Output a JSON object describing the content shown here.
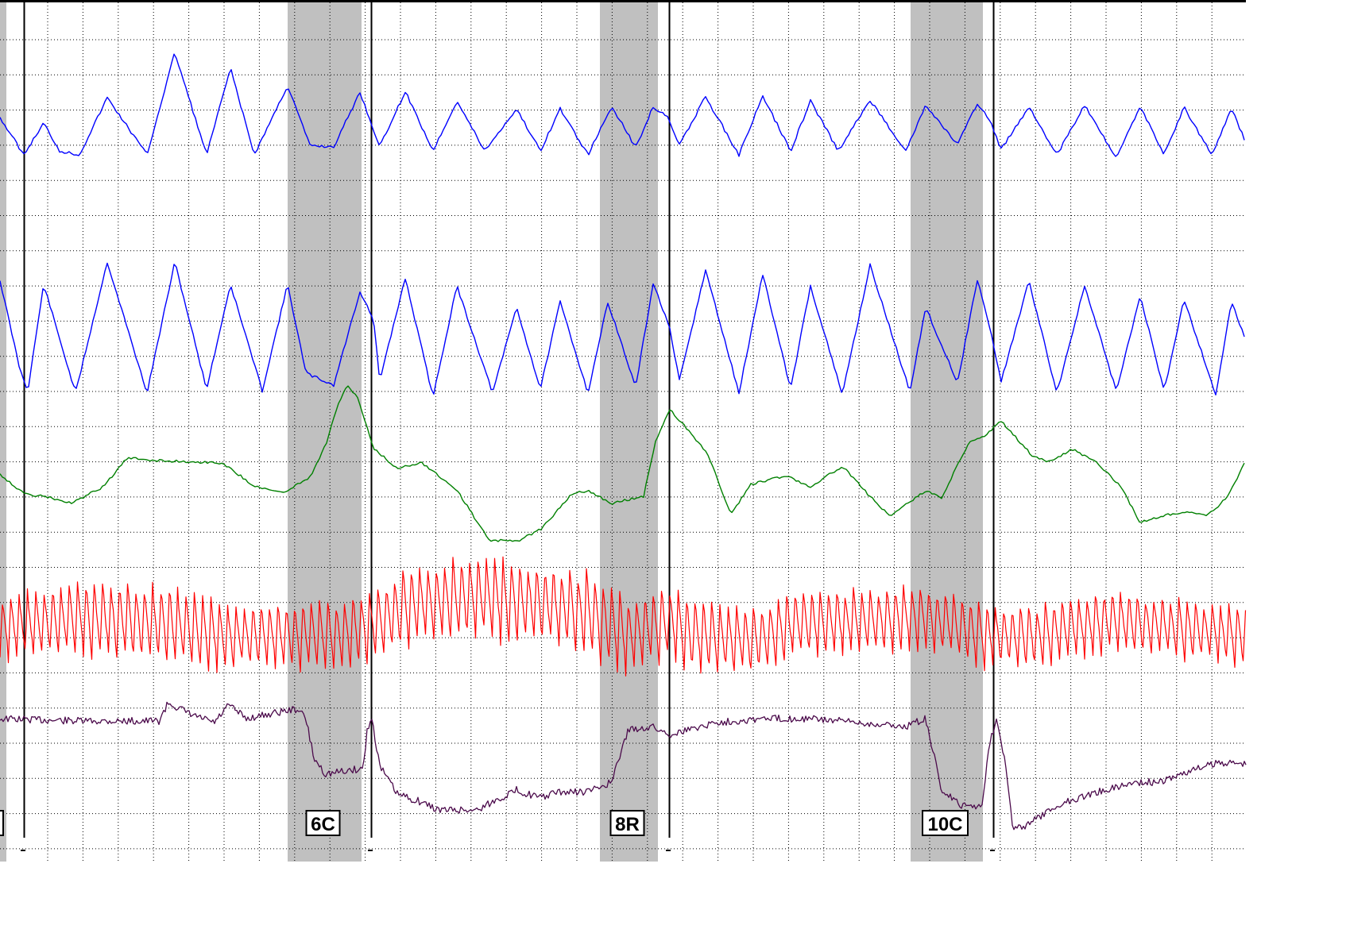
{
  "chart_data": {
    "type": "line",
    "title": "",
    "xlabel": "",
    "ylabel": "",
    "grid": true,
    "xlim": [
      0,
      1568
    ],
    "colors": {
      "background": "#ffffff",
      "grid": "#000000",
      "shading": "#c0c0c0",
      "pneumo_upper": "#0000ff",
      "pneumo_lower": "#0000ff",
      "eda": "#008000",
      "cardio": "#ff0000",
      "motion": "#4b0a4b"
    },
    "question_markers": [
      {
        "label": "",
        "partial": true,
        "shade": [
          0,
          8
        ],
        "onset": 0,
        "offset": 30
      },
      {
        "label": "6C",
        "shade": [
          362,
          455
        ],
        "onset": 362,
        "offset": 467
      },
      {
        "label": "8R",
        "shade": [
          755,
          828
        ],
        "onset": 755,
        "offset": 842
      },
      {
        "label": "10C",
        "shade": [
          1146,
          1237
        ],
        "onset": 1146,
        "offset": 1250
      }
    ],
    "series": [
      {
        "key": "pneumo_upper",
        "points": [
          [
            0,
            148
          ],
          [
            30,
            195
          ],
          [
            55,
            155
          ],
          [
            75,
            190
          ],
          [
            100,
            195
          ],
          [
            135,
            123
          ],
          [
            185,
            195
          ],
          [
            220,
            66
          ],
          [
            260,
            195
          ],
          [
            290,
            86
          ],
          [
            320,
            195
          ],
          [
            362,
            108
          ],
          [
            390,
            183
          ],
          [
            420,
            185
          ],
          [
            453,
            116
          ],
          [
            478,
            185
          ],
          [
            510,
            115
          ],
          [
            545,
            190
          ],
          [
            575,
            127
          ],
          [
            610,
            190
          ],
          [
            650,
            137
          ],
          [
            680,
            190
          ],
          [
            705,
            137
          ],
          [
            740,
            195
          ],
          [
            770,
            134
          ],
          [
            800,
            186
          ],
          [
            822,
            134
          ],
          [
            842,
            150
          ],
          [
            855,
            183
          ],
          [
            888,
            122
          ],
          [
            930,
            195
          ],
          [
            960,
            121
          ],
          [
            995,
            190
          ],
          [
            1020,
            127
          ],
          [
            1055,
            190
          ],
          [
            1095,
            126
          ],
          [
            1140,
            190
          ],
          [
            1165,
            133
          ],
          [
            1205,
            182
          ],
          [
            1230,
            131
          ],
          [
            1245,
            150
          ],
          [
            1260,
            188
          ],
          [
            1295,
            134
          ],
          [
            1330,
            195
          ],
          [
            1365,
            133
          ],
          [
            1405,
            200
          ],
          [
            1435,
            133
          ],
          [
            1465,
            195
          ],
          [
            1490,
            135
          ],
          [
            1525,
            195
          ],
          [
            1550,
            137
          ],
          [
            1568,
            180
          ]
        ]
      },
      {
        "key": "pneumo_lower",
        "points": [
          [
            0,
            353
          ],
          [
            25,
            465
          ],
          [
            35,
            492
          ],
          [
            55,
            358
          ],
          [
            95,
            495
          ],
          [
            135,
            330
          ],
          [
            185,
            495
          ],
          [
            220,
            330
          ],
          [
            260,
            490
          ],
          [
            290,
            358
          ],
          [
            330,
            492
          ],
          [
            362,
            358
          ],
          [
            385,
            470
          ],
          [
            420,
            485
          ],
          [
            453,
            367
          ],
          [
            470,
            402
          ],
          [
            478,
            480
          ],
          [
            510,
            350
          ],
          [
            545,
            500
          ],
          [
            575,
            360
          ],
          [
            620,
            495
          ],
          [
            650,
            387
          ],
          [
            680,
            490
          ],
          [
            705,
            380
          ],
          [
            740,
            495
          ],
          [
            765,
            380
          ],
          [
            800,
            488
          ],
          [
            822,
            357
          ],
          [
            842,
            410
          ],
          [
            855,
            480
          ],
          [
            888,
            340
          ],
          [
            930,
            495
          ],
          [
            960,
            345
          ],
          [
            995,
            490
          ],
          [
            1020,
            360
          ],
          [
            1060,
            497
          ],
          [
            1095,
            334
          ],
          [
            1145,
            493
          ],
          [
            1165,
            387
          ],
          [
            1205,
            482
          ],
          [
            1230,
            352
          ],
          [
            1245,
            410
          ],
          [
            1260,
            480
          ],
          [
            1295,
            354
          ],
          [
            1330,
            495
          ],
          [
            1365,
            360
          ],
          [
            1405,
            493
          ],
          [
            1435,
            372
          ],
          [
            1465,
            493
          ],
          [
            1490,
            376
          ],
          [
            1530,
            497
          ],
          [
            1550,
            380
          ],
          [
            1568,
            430
          ]
        ]
      },
      {
        "key": "eda",
        "points": [
          [
            0,
            597
          ],
          [
            30,
            622
          ],
          [
            60,
            626
          ],
          [
            90,
            634
          ],
          [
            130,
            613
          ],
          [
            160,
            577
          ],
          [
            200,
            580
          ],
          [
            280,
            583
          ],
          [
            320,
            612
          ],
          [
            355,
            621
          ],
          [
            390,
            601
          ],
          [
            410,
            560
          ],
          [
            425,
            510
          ],
          [
            437,
            486
          ],
          [
            450,
            500
          ],
          [
            470,
            565
          ],
          [
            500,
            590
          ],
          [
            530,
            582
          ],
          [
            575,
            617
          ],
          [
            615,
            680
          ],
          [
            650,
            682
          ],
          [
            680,
            667
          ],
          [
            720,
            622
          ],
          [
            740,
            618
          ],
          [
            770,
            634
          ],
          [
            810,
            625
          ],
          [
            825,
            555
          ],
          [
            843,
            516
          ],
          [
            860,
            535
          ],
          [
            890,
            570
          ],
          [
            920,
            648
          ],
          [
            945,
            610
          ],
          [
            990,
            599
          ],
          [
            1020,
            613
          ],
          [
            1060,
            587
          ],
          [
            1090,
            620
          ],
          [
            1120,
            650
          ],
          [
            1165,
            618
          ],
          [
            1185,
            627
          ],
          [
            1220,
            556
          ],
          [
            1240,
            548
          ],
          [
            1260,
            530
          ],
          [
            1300,
            575
          ],
          [
            1320,
            581
          ],
          [
            1350,
            566
          ],
          [
            1380,
            582
          ],
          [
            1410,
            612
          ],
          [
            1435,
            658
          ],
          [
            1470,
            648
          ],
          [
            1500,
            645
          ],
          [
            1520,
            649
          ],
          [
            1545,
            626
          ],
          [
            1568,
            580
          ]
        ]
      },
      {
        "key": "cardio",
        "baseline": [
          [
            0,
            790
          ],
          [
            100,
            778
          ],
          [
            200,
            783
          ],
          [
            280,
            800
          ],
          [
            340,
            800
          ],
          [
            420,
            800
          ],
          [
            470,
            785
          ],
          [
            520,
            760
          ],
          [
            600,
            750
          ],
          [
            680,
            760
          ],
          [
            740,
            770
          ],
          [
            790,
            800
          ],
          [
            842,
            780
          ],
          [
            870,
            800
          ],
          [
            950,
            805
          ],
          [
            1000,
            785
          ],
          [
            1100,
            780
          ],
          [
            1160,
            775
          ],
          [
            1240,
            800
          ],
          [
            1300,
            800
          ],
          [
            1400,
            780
          ],
          [
            1480,
            790
          ],
          [
            1568,
            800
          ]
        ],
        "period": 10.5,
        "amplitude": [
          [
            0,
            38
          ],
          [
            200,
            48
          ],
          [
            300,
            36
          ],
          [
            460,
            42
          ],
          [
            560,
            48
          ],
          [
            760,
            48
          ],
          [
            850,
            42
          ],
          [
            1000,
            38
          ],
          [
            1250,
            36
          ],
          [
            1568,
            34
          ]
        ]
      },
      {
        "key": "motion",
        "points": [
          [
            0,
            905
          ],
          [
            100,
            908
          ],
          [
            200,
            908
          ],
          [
            212,
            885
          ],
          [
            240,
            900
          ],
          [
            270,
            910
          ],
          [
            288,
            888
          ],
          [
            310,
            905
          ],
          [
            360,
            895
          ],
          [
            375,
            893
          ],
          [
            385,
            905
          ],
          [
            395,
            955
          ],
          [
            410,
            975
          ],
          [
            440,
            970
          ],
          [
            457,
            968
          ],
          [
            462,
            920
          ],
          [
            468,
            905
          ],
          [
            478,
            965
          ],
          [
            500,
            1000
          ],
          [
            530,
            1010
          ],
          [
            552,
            1020
          ],
          [
            600,
            1020
          ],
          [
            650,
            995
          ],
          [
            680,
            1005
          ],
          [
            700,
            998
          ],
          [
            740,
            997
          ],
          [
            770,
            985
          ],
          [
            790,
            920
          ],
          [
            820,
            915
          ],
          [
            843,
            925
          ],
          [
            900,
            910
          ],
          [
            960,
            905
          ],
          [
            1020,
            905
          ],
          [
            1080,
            910
          ],
          [
            1140,
            915
          ],
          [
            1165,
            905
          ],
          [
            1175,
            950
          ],
          [
            1185,
            995
          ],
          [
            1210,
            1015
          ],
          [
            1236,
            1015
          ],
          [
            1245,
            935
          ],
          [
            1255,
            905
          ],
          [
            1265,
            960
          ],
          [
            1275,
            1045
          ],
          [
            1290,
            1040
          ],
          [
            1340,
            1010
          ],
          [
            1390,
            995
          ],
          [
            1430,
            985
          ],
          [
            1460,
            985
          ],
          [
            1500,
            970
          ],
          [
            1535,
            960
          ],
          [
            1568,
            962
          ]
        ]
      }
    ]
  }
}
